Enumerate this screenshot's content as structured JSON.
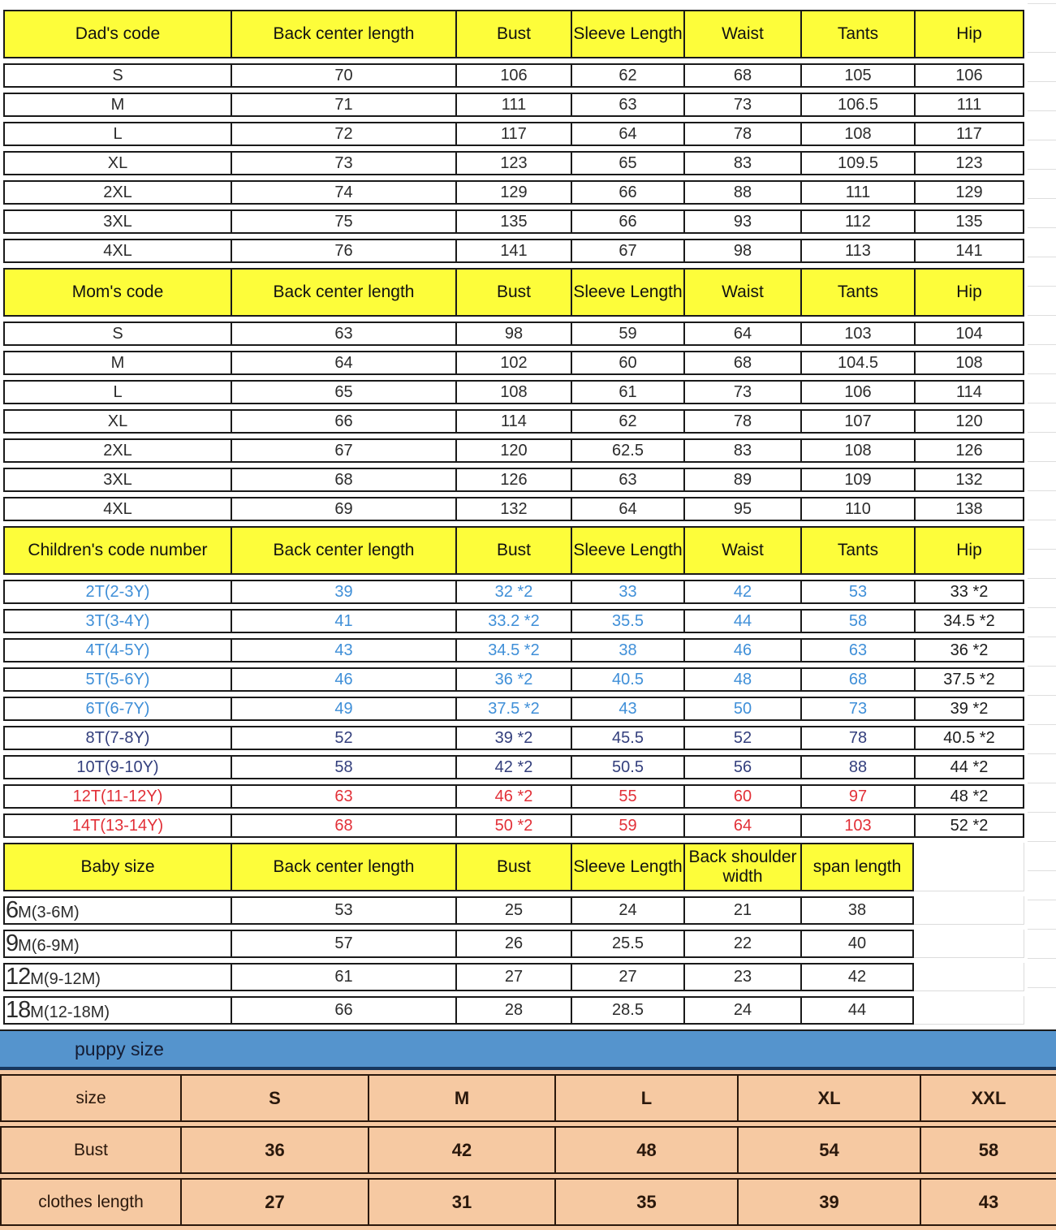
{
  "colors": {
    "header_yellow": "#fdfd3a",
    "bar_blue": "#5594cd",
    "bar_underline": "#17375e",
    "table_pink": "#f6c9a2",
    "grid_border": "#1a1a1a",
    "child_blue": "#3f8fd8",
    "child_navy": "#333f7d",
    "child_red": "#e23038"
  },
  "sections": [
    {
      "name": "dad",
      "headers": [
        "Dad's code",
        "Back center length",
        "Bust",
        "Sleeve Length",
        "Waist",
        "Tants",
        "Hip"
      ],
      "rows": [
        {
          "cells": [
            "S",
            "70",
            "106",
            "62",
            "68",
            "105",
            "106"
          ]
        },
        {
          "cells": [
            "M",
            "71",
            "111",
            "63",
            "73",
            "106.5",
            "111"
          ]
        },
        {
          "cells": [
            "L",
            "72",
            "117",
            "64",
            "78",
            "108",
            "117"
          ]
        },
        {
          "cells": [
            "XL",
            "73",
            "123",
            "65",
            "83",
            "109.5",
            "123"
          ]
        },
        {
          "cells": [
            "2XL",
            "74",
            "129",
            "66",
            "88",
            "111",
            "129"
          ]
        },
        {
          "cells": [
            "3XL",
            "75",
            "135",
            "66",
            "93",
            "112",
            "135"
          ]
        },
        {
          "cells": [
            "4XL",
            "76",
            "141",
            "67",
            "98",
            "113",
            "141"
          ]
        }
      ]
    },
    {
      "name": "mom",
      "headers": [
        "Mom's code",
        "Back center length",
        "Bust",
        "Sleeve Length",
        "Waist",
        "Tants",
        "Hip"
      ],
      "rows": [
        {
          "cells": [
            "S",
            "63",
            "98",
            "59",
            "64",
            "103",
            "104"
          ]
        },
        {
          "cells": [
            "M",
            "64",
            "102",
            "60",
            "68",
            "104.5",
            "108"
          ]
        },
        {
          "cells": [
            "L",
            "65",
            "108",
            "61",
            "73",
            "106",
            "114"
          ]
        },
        {
          "cells": [
            "XL",
            "66",
            "114",
            "62",
            "78",
            "107",
            "120"
          ]
        },
        {
          "cells": [
            "2XL",
            "67",
            "120",
            "62.5",
            "83",
            "108",
            "126"
          ]
        },
        {
          "cells": [
            "3XL",
            "68",
            "126",
            "63",
            "89",
            "109",
            "132"
          ]
        },
        {
          "cells": [
            "4XL",
            "69",
            "132",
            "64",
            "95",
            "110",
            "138"
          ]
        }
      ]
    },
    {
      "name": "children",
      "headers": [
        "Children's code number",
        "Back center length",
        "Bust",
        "Sleeve Length",
        "Waist",
        "Tants",
        "Hip"
      ],
      "rows": [
        {
          "cells": [
            "2T(2-3Y)",
            "39",
            "32 *2",
            "33",
            "42",
            "53",
            "33 *2"
          ],
          "color": "#3f8fd8",
          "last_black": true
        },
        {
          "cells": [
            "3T(3-4Y)",
            "41",
            "33.2 *2",
            "35.5",
            "44",
            "58",
            "34.5 *2"
          ],
          "color": "#3f8fd8",
          "last_black": true
        },
        {
          "cells": [
            "4T(4-5Y)",
            "43",
            "34.5 *2",
            "38",
            "46",
            "63",
            "36 *2"
          ],
          "color": "#3f8fd8",
          "last_black": true
        },
        {
          "cells": [
            "5T(5-6Y)",
            "46",
            "36 *2",
            "40.5",
            "48",
            "68",
            "37.5 *2"
          ],
          "color": "#3f8fd8",
          "last_black": true
        },
        {
          "cells": [
            "6T(6-7Y)",
            "49",
            "37.5 *2",
            "43",
            "50",
            "73",
            "39 *2"
          ],
          "color": "#3f8fd8",
          "last_black": true
        },
        {
          "cells": [
            "8T(7-8Y)",
            "52",
            "39 *2",
            "45.5",
            "52",
            "78",
            "40.5 *2"
          ],
          "color": "#333f7d",
          "last_black": true
        },
        {
          "cells": [
            "10T(9-10Y)",
            "58",
            "42 *2",
            "50.5",
            "56",
            "88",
            "44 *2"
          ],
          "color": "#333f7d",
          "last_black": true
        },
        {
          "cells": [
            "12T(11-12Y)",
            "63",
            "46 *2",
            "55",
            "60",
            "97",
            "48 *2"
          ],
          "color": "#e23038",
          "last_black": true
        },
        {
          "cells": [
            "14T(13-14Y)",
            "68",
            "50 *2",
            "59",
            "64",
            "103",
            "52 *2"
          ],
          "color": "#e23038",
          "last_black": true
        }
      ]
    },
    {
      "name": "baby",
      "ghost": true,
      "headers": [
        "Baby size",
        "Back center length",
        "Bust",
        "Sleeve Length",
        "Back shoulder width",
        "span length"
      ],
      "rows": [
        {
          "label_big": "6",
          "label_rest": "M(3-6M)",
          "cells": [
            "53",
            "25",
            "24",
            "21",
            "38"
          ]
        },
        {
          "label_big": "9",
          "label_rest": "M(6-9M)",
          "cells": [
            "57",
            "26",
            "25.5",
            "22",
            "40"
          ]
        },
        {
          "label_big": "12",
          "label_rest": "M(9-12M)",
          "cells": [
            "61",
            "27",
            "27",
            "23",
            "42"
          ]
        },
        {
          "label_big": "18",
          "label_rest": "M(12-18M)",
          "cells": [
            "66",
            "28",
            "28.5",
            "24",
            "44"
          ]
        }
      ]
    }
  ],
  "puppy": {
    "bar_title": "puppy size",
    "rows": [
      [
        "size",
        "S",
        "M",
        "L",
        "XL",
        "XXL"
      ],
      [
        "Bust",
        "36",
        "42",
        "48",
        "54",
        "58"
      ],
      [
        "clothes length",
        "27",
        "31",
        "35",
        "39",
        "43"
      ]
    ]
  }
}
